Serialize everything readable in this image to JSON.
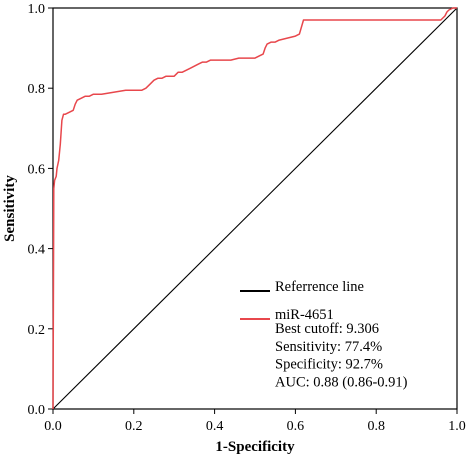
{
  "chart_data": {
    "type": "line",
    "title": "",
    "xlabel": "1-Specificity",
    "ylabel": "Sensitivity",
    "xlim": [
      0,
      1
    ],
    "ylim": [
      0,
      1
    ],
    "xticks": [
      "0.0",
      "0.2",
      "0.4",
      "0.6",
      "0.8",
      "1.0"
    ],
    "yticks": [
      "0.0",
      "0.2",
      "0.4",
      "0.6",
      "0.8",
      "1.0"
    ],
    "grid": false,
    "legend_position": "bottom-right",
    "series": [
      {
        "name": "Referrence line",
        "color": "#000000",
        "x": [
          0,
          1
        ],
        "y": [
          0,
          1
        ]
      },
      {
        "name": "miR-4651",
        "color": "#e8474c",
        "x": [
          0,
          0.002,
          0.004,
          0.006,
          0.008,
          0.01,
          0.014,
          0.018,
          0.022,
          0.026,
          0.03,
          0.04,
          0.05,
          0.055,
          0.06,
          0.07,
          0.08,
          0.09,
          0.1,
          0.12,
          0.15,
          0.18,
          0.2,
          0.22,
          0.23,
          0.24,
          0.25,
          0.26,
          0.27,
          0.28,
          0.3,
          0.31,
          0.32,
          0.34,
          0.36,
          0.37,
          0.38,
          0.39,
          0.4,
          0.42,
          0.44,
          0.46,
          0.48,
          0.5,
          0.51,
          0.52,
          0.525,
          0.53,
          0.54,
          0.55,
          0.56,
          0.58,
          0.6,
          0.61,
          0.62,
          0.7,
          0.8,
          0.9,
          0.96,
          0.97,
          0.975,
          0.98,
          0.99,
          1.0
        ],
        "y": [
          0,
          0.55,
          0.57,
          0.575,
          0.58,
          0.6,
          0.62,
          0.66,
          0.72,
          0.735,
          0.735,
          0.74,
          0.745,
          0.76,
          0.77,
          0.775,
          0.78,
          0.78,
          0.785,
          0.785,
          0.79,
          0.795,
          0.795,
          0.795,
          0.8,
          0.81,
          0.82,
          0.825,
          0.825,
          0.83,
          0.83,
          0.84,
          0.84,
          0.85,
          0.86,
          0.865,
          0.865,
          0.87,
          0.87,
          0.87,
          0.87,
          0.875,
          0.875,
          0.875,
          0.88,
          0.885,
          0.9,
          0.91,
          0.915,
          0.915,
          0.92,
          0.925,
          0.93,
          0.935,
          0.97,
          0.97,
          0.97,
          0.97,
          0.97,
          0.98,
          0.99,
          0.995,
          1.0,
          1.0
        ]
      }
    ],
    "annotations": [
      "Best cutoff: 9.306",
      "Sensitivity:  77.4%",
      "Specificity:  92.7%",
      "AUC: 0.88 (0.86-0.91)"
    ]
  }
}
